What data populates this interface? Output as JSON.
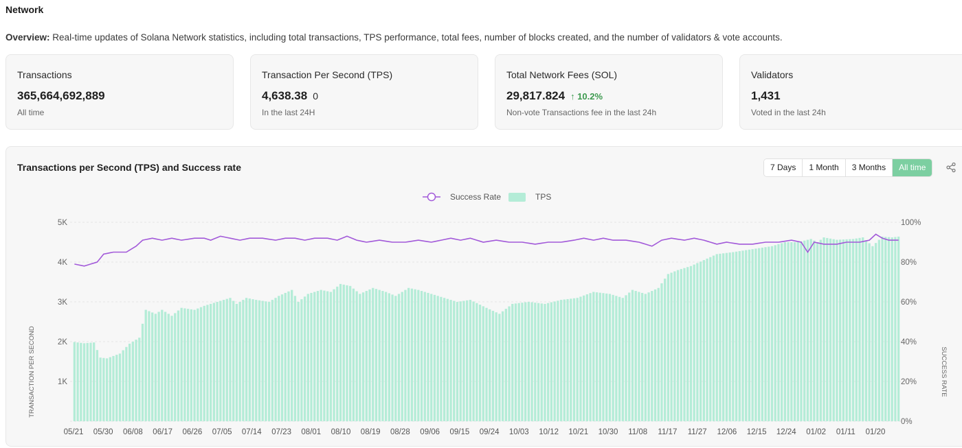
{
  "section_title": "Network",
  "overview": {
    "label": "Overview:",
    "text": " Real-time updates of Solana Network statistics, including total transactions, TPS performance, total fees, number of blocks created, and the number of validators & vote accounts."
  },
  "cards": [
    {
      "title": "Transactions",
      "value": "365,664,692,889",
      "extra": "",
      "change": "",
      "sub": "All time"
    },
    {
      "title": "Transaction Per Second (TPS)",
      "value": "4,638.38",
      "extra": "0",
      "change": "",
      "sub": "In the last 24H"
    },
    {
      "title": "Total Network Fees (SOL)",
      "value": "29,817.824",
      "extra": "",
      "change": "↑ 10.2%",
      "sub": "Non-vote Transactions fee in the last 24h"
    },
    {
      "title": "Validators",
      "value": "1,431",
      "extra": "",
      "change": "",
      "sub": "Voted in the last 24h"
    }
  ],
  "chart_panel": {
    "title": "Transactions per Second (TPS) and Success rate",
    "ranges": [
      "7 Days",
      "1 Month",
      "3 Months",
      "All time"
    ],
    "active_range": "All time",
    "share_icon": "share-icon"
  },
  "chart_data": {
    "type": "bar+line",
    "title": "Transactions per Second (TPS) and Success rate",
    "legend": {
      "placement": "top-center",
      "entries": [
        "Success Rate",
        "TPS"
      ]
    },
    "ylabel_left": "TRANSACTION PER SECOND",
    "ylabel_right": "SUCCESS RATE",
    "ylim_left": [
      0,
      5000
    ],
    "ylim_right": [
      0,
      100
    ],
    "yticks_left": [
      "",
      "1K",
      "2K",
      "3K",
      "4K",
      "5K"
    ],
    "yticks_right": [
      "0%",
      "20%",
      "40%",
      "60%",
      "80%",
      "100%"
    ],
    "x_ticks": [
      "05/21",
      "05/30",
      "06/08",
      "06/17",
      "06/26",
      "07/05",
      "07/14",
      "07/23",
      "08/01",
      "08/10",
      "08/19",
      "08/28",
      "09/06",
      "09/15",
      "09/24",
      "10/03",
      "10/12",
      "10/21",
      "10/30",
      "11/08",
      "11/17",
      "11/27",
      "12/06",
      "12/15",
      "12/24",
      "01/02",
      "01/11",
      "01/20"
    ],
    "colors": {
      "tps": "#b4ecd7",
      "success_rate": "#a259d9",
      "grid": "#e4e4e4"
    },
    "tps_anchors": [
      [
        0,
        1990
      ],
      [
        3,
        1960
      ],
      [
        6,
        1980
      ],
      [
        8,
        1600
      ],
      [
        10,
        1580
      ],
      [
        14,
        1700
      ],
      [
        17,
        1950
      ],
      [
        20,
        2100
      ],
      [
        22,
        2800
      ],
      [
        25,
        2700
      ],
      [
        27,
        2800
      ],
      [
        30,
        2650
      ],
      [
        33,
        2850
      ],
      [
        37,
        2800
      ],
      [
        40,
        2900
      ],
      [
        44,
        3000
      ],
      [
        48,
        3100
      ],
      [
        50,
        2950
      ],
      [
        53,
        3100
      ],
      [
        56,
        3050
      ],
      [
        60,
        3000
      ],
      [
        63,
        3150
      ],
      [
        67,
        3300
      ],
      [
        69,
        3000
      ],
      [
        72,
        3200
      ],
      [
        76,
        3300
      ],
      [
        79,
        3250
      ],
      [
        82,
        3450
      ],
      [
        85,
        3400
      ],
      [
        88,
        3200
      ],
      [
        92,
        3350
      ],
      [
        96,
        3250
      ],
      [
        99,
        3150
      ],
      [
        103,
        3350
      ],
      [
        106,
        3300
      ],
      [
        110,
        3200
      ],
      [
        114,
        3100
      ],
      [
        118,
        3000
      ],
      [
        122,
        3050
      ],
      [
        127,
        2850
      ],
      [
        131,
        2700
      ],
      [
        135,
        2950
      ],
      [
        140,
        3000
      ],
      [
        145,
        2950
      ],
      [
        150,
        3050
      ],
      [
        155,
        3100
      ],
      [
        160,
        3250
      ],
      [
        165,
        3200
      ],
      [
        169,
        3100
      ],
      [
        172,
        3300
      ],
      [
        176,
        3200
      ],
      [
        180,
        3350
      ],
      [
        183,
        3700
      ],
      [
        186,
        3800
      ],
      [
        190,
        3900
      ],
      [
        194,
        4050
      ],
      [
        198,
        4200
      ],
      [
        203,
        4250
      ],
      [
        207,
        4300
      ],
      [
        211,
        4350
      ],
      [
        215,
        4400
      ],
      [
        219,
        4500
      ],
      [
        223,
        4500
      ],
      [
        227,
        4580
      ],
      [
        229,
        4500
      ],
      [
        231,
        4620
      ],
      [
        235,
        4560
      ],
      [
        240,
        4580
      ],
      [
        243,
        4620
      ],
      [
        246,
        4400
      ],
      [
        249,
        4640
      ],
      [
        252,
        4620
      ],
      [
        254,
        4640
      ]
    ],
    "success_rate_anchors": [
      [
        0,
        79
      ],
      [
        3,
        78
      ],
      [
        5,
        79
      ],
      [
        7,
        80
      ],
      [
        9,
        84
      ],
      [
        12,
        85
      ],
      [
        16,
        85
      ],
      [
        19,
        88
      ],
      [
        21,
        91
      ],
      [
        24,
        92
      ],
      [
        27,
        91
      ],
      [
        30,
        92
      ],
      [
        33,
        91
      ],
      [
        37,
        92
      ],
      [
        40,
        92
      ],
      [
        42,
        91
      ],
      [
        45,
        93
      ],
      [
        48,
        92
      ],
      [
        51,
        91
      ],
      [
        54,
        92
      ],
      [
        58,
        92
      ],
      [
        62,
        91
      ],
      [
        65,
        92
      ],
      [
        68,
        92
      ],
      [
        71,
        91
      ],
      [
        74,
        92
      ],
      [
        78,
        92
      ],
      [
        81,
        91
      ],
      [
        84,
        93
      ],
      [
        87,
        91
      ],
      [
        90,
        90
      ],
      [
        94,
        91
      ],
      [
        98,
        90
      ],
      [
        102,
        90
      ],
      [
        106,
        91
      ],
      [
        110,
        90
      ],
      [
        113,
        91
      ],
      [
        116,
        92
      ],
      [
        119,
        91
      ],
      [
        122,
        92
      ],
      [
        126,
        90
      ],
      [
        130,
        91
      ],
      [
        134,
        90
      ],
      [
        138,
        90
      ],
      [
        142,
        89
      ],
      [
        146,
        90
      ],
      [
        150,
        90
      ],
      [
        154,
        91
      ],
      [
        157,
        92
      ],
      [
        160,
        91
      ],
      [
        163,
        92
      ],
      [
        166,
        91
      ],
      [
        170,
        91
      ],
      [
        174,
        90
      ],
      [
        178,
        88
      ],
      [
        181,
        91
      ],
      [
        184,
        92
      ],
      [
        188,
        91
      ],
      [
        191,
        92
      ],
      [
        194,
        91
      ],
      [
        198,
        89
      ],
      [
        201,
        90
      ],
      [
        205,
        89
      ],
      [
        209,
        89
      ],
      [
        213,
        90
      ],
      [
        217,
        90
      ],
      [
        221,
        91
      ],
      [
        224,
        90
      ],
      [
        226,
        85
      ],
      [
        228,
        90
      ],
      [
        231,
        89
      ],
      [
        235,
        89
      ],
      [
        238,
        90
      ],
      [
        242,
        90
      ],
      [
        245,
        91
      ],
      [
        247,
        94
      ],
      [
        249,
        92
      ],
      [
        251,
        91
      ],
      [
        254,
        91
      ]
    ]
  }
}
